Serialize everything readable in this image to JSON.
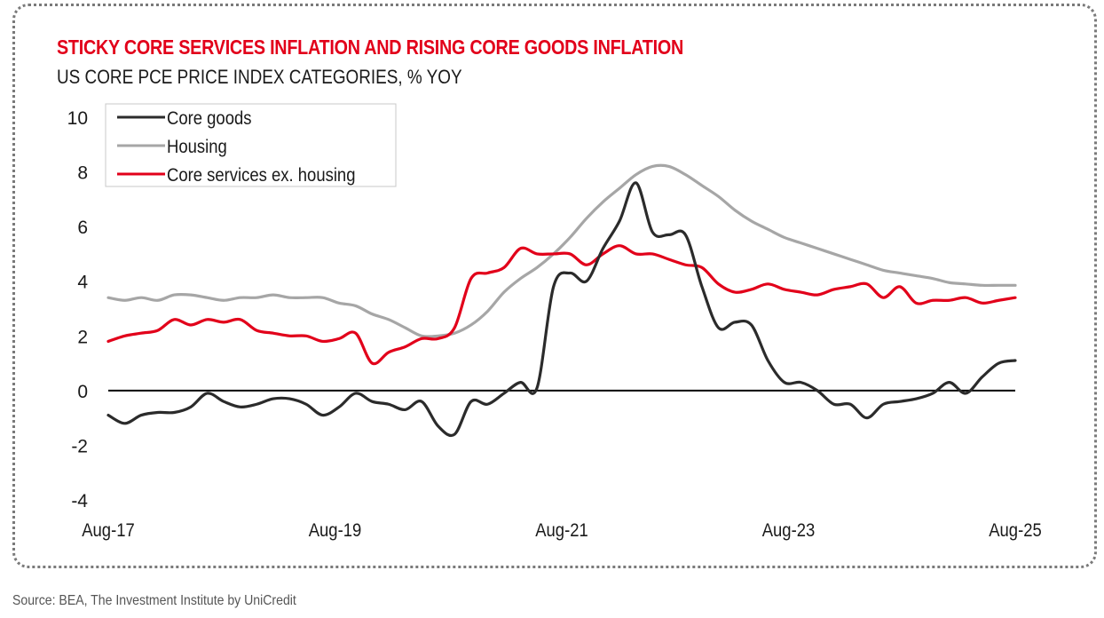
{
  "header": {
    "title": "STICKY CORE SERVICES INFLATION AND RISING CORE GOODS INFLATION",
    "subtitle": "US CORE PCE PRICE INDEX CATEGORIES, % YOY"
  },
  "footer": {
    "source": "Source: BEA, The Investment Institute by UniCredit"
  },
  "colors": {
    "core_goods": "#2b2b2b",
    "housing": "#a6a6a6",
    "core_services": "#e2001a",
    "title": "#e2001a"
  },
  "chart_data": {
    "type": "line",
    "title": "STICKY CORE SERVICES INFLATION AND RISING CORE GOODS INFLATION",
    "subtitle": "US CORE PCE PRICE INDEX CATEGORIES, % YOY",
    "xlabel": "",
    "ylabel": "",
    "ylim": [
      -4,
      10
    ],
    "yticks": [
      -4,
      -2,
      0,
      2,
      4,
      6,
      8,
      10
    ],
    "xticks": [
      "Aug-17",
      "Aug-19",
      "Aug-21",
      "Aug-23",
      "Aug-25"
    ],
    "x_start": "Aug-17",
    "x_end": "Aug-25",
    "x_step_months": 2,
    "legend_position": "top-left",
    "grid": false,
    "zero_line": true,
    "series": [
      {
        "name": "Core goods",
        "color": "#2b2b2b",
        "values": [
          -0.9,
          -1.2,
          -0.9,
          -0.8,
          -0.8,
          -0.6,
          -0.1,
          -0.4,
          -0.6,
          -0.5,
          -0.3,
          -0.3,
          -0.5,
          -0.9,
          -0.6,
          -0.1,
          -0.4,
          -0.5,
          -0.7,
          -0.4,
          -1.3,
          -1.6,
          -0.4,
          -0.5,
          -0.1,
          0.3,
          0.1,
          3.8,
          4.3,
          4.0,
          5.2,
          6.2,
          7.6,
          5.8,
          5.7,
          5.7,
          3.8,
          2.3,
          2.5,
          2.4,
          1.1,
          0.3,
          0.3,
          0.0,
          -0.5,
          -0.5,
          -1.0,
          -0.5,
          -0.4,
          -0.3,
          -0.1,
          0.3,
          -0.1,
          0.5,
          1.0,
          1.1
        ]
      },
      {
        "name": "Housing",
        "color": "#a6a6a6",
        "values": [
          3.4,
          3.3,
          3.4,
          3.3,
          3.5,
          3.5,
          3.4,
          3.3,
          3.4,
          3.4,
          3.5,
          3.4,
          3.4,
          3.4,
          3.2,
          3.1,
          2.8,
          2.6,
          2.3,
          2.0,
          2.0,
          2.1,
          2.4,
          2.9,
          3.6,
          4.1,
          4.5,
          5.0,
          5.6,
          6.3,
          6.9,
          7.4,
          7.9,
          8.2,
          8.2,
          7.9,
          7.5,
          7.1,
          6.6,
          6.2,
          5.9,
          5.6,
          5.4,
          5.2,
          5.0,
          4.8,
          4.6,
          4.4,
          4.3,
          4.2,
          4.1,
          3.95,
          3.9,
          3.85,
          3.85,
          3.85
        ]
      },
      {
        "name": "Core services ex. housing",
        "color": "#e2001a",
        "values": [
          1.8,
          2.0,
          2.1,
          2.2,
          2.6,
          2.4,
          2.6,
          2.5,
          2.6,
          2.2,
          2.1,
          2.0,
          2.0,
          1.8,
          1.9,
          2.1,
          1.0,
          1.4,
          1.6,
          1.9,
          1.9,
          2.3,
          4.1,
          4.3,
          4.5,
          5.2,
          5.0,
          5.0,
          5.0,
          4.6,
          5.0,
          5.3,
          5.0,
          5.0,
          4.8,
          4.6,
          4.5,
          3.9,
          3.6,
          3.7,
          3.9,
          3.7,
          3.6,
          3.5,
          3.7,
          3.8,
          3.9,
          3.4,
          3.8,
          3.2,
          3.3,
          3.3,
          3.4,
          3.2,
          3.3,
          3.4
        ]
      }
    ]
  }
}
